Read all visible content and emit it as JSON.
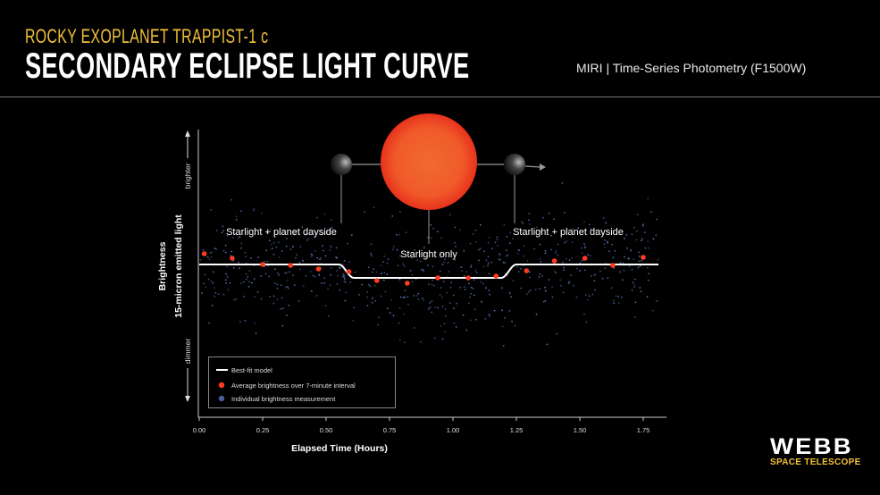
{
  "header": {
    "subtitle": "ROCKY EXOPLANET TRAPPIST-1 c",
    "title": "SECONDARY ECLIPSE LIGHT CURVE",
    "instrument": "MIRI | Time-Series Photometry (F1500W)"
  },
  "logo": {
    "name": "WEBB",
    "tagline": "SPACE TELESCOPE"
  },
  "colors": {
    "accent": "#f2c03a",
    "average_points": "#ff3b1f",
    "individual_points": "#5a73b8",
    "model": "#ffffff",
    "star": "#f0502a"
  },
  "chart_data": {
    "type": "scatter",
    "xlabel": "Elapsed Time (Hours)",
    "ylabel": "Brightness",
    "ylabel_sub": "15-micron emitted light",
    "y_up_label": "brighter",
    "y_down_label": "dimmer",
    "x_ticks": [
      "0.00",
      "0.25",
      "0.50",
      "0.75",
      "1.00",
      "1.25",
      "1.50",
      "1.75"
    ],
    "xlim": [
      0,
      1.84
    ],
    "y_unit_note": "relative brightness (ppm), axis unlabeled",
    "ylim": [
      -4700,
      4200
    ],
    "grid": false,
    "legend_placement": "bottom-left",
    "legend": [
      {
        "label": "Best-fit model",
        "kind": "line"
      },
      {
        "label": "Average brightness over 7-minute interval",
        "kind": "red-dot"
      },
      {
        "label": "Individual brightness measurement",
        "kind": "blue-dot"
      }
    ],
    "annotations": {
      "before": "Starlight + planet dayside",
      "during": "Starlight only",
      "after": "Starlight + planet dayside"
    },
    "model": {
      "name": "Best-fit model",
      "baseline": 0,
      "eclipse_depth": 421,
      "ingress": [
        0.55,
        0.61
      ],
      "egress": [
        1.19,
        1.25
      ],
      "x_end": 1.81
    },
    "series": [
      {
        "name": "Average brightness over 7-minute interval",
        "x": [
          0.02,
          0.13,
          0.25,
          0.36,
          0.47,
          0.59,
          0.7,
          0.82,
          0.94,
          1.06,
          1.17,
          1.29,
          1.4,
          1.52,
          1.63,
          1.75
        ],
        "y": [
          336,
          196,
          0,
          -28,
          -140,
          -224,
          -504,
          -588,
          -420,
          -420,
          -364,
          -196,
          112,
          196,
          -28,
          224
        ]
      }
    ]
  }
}
